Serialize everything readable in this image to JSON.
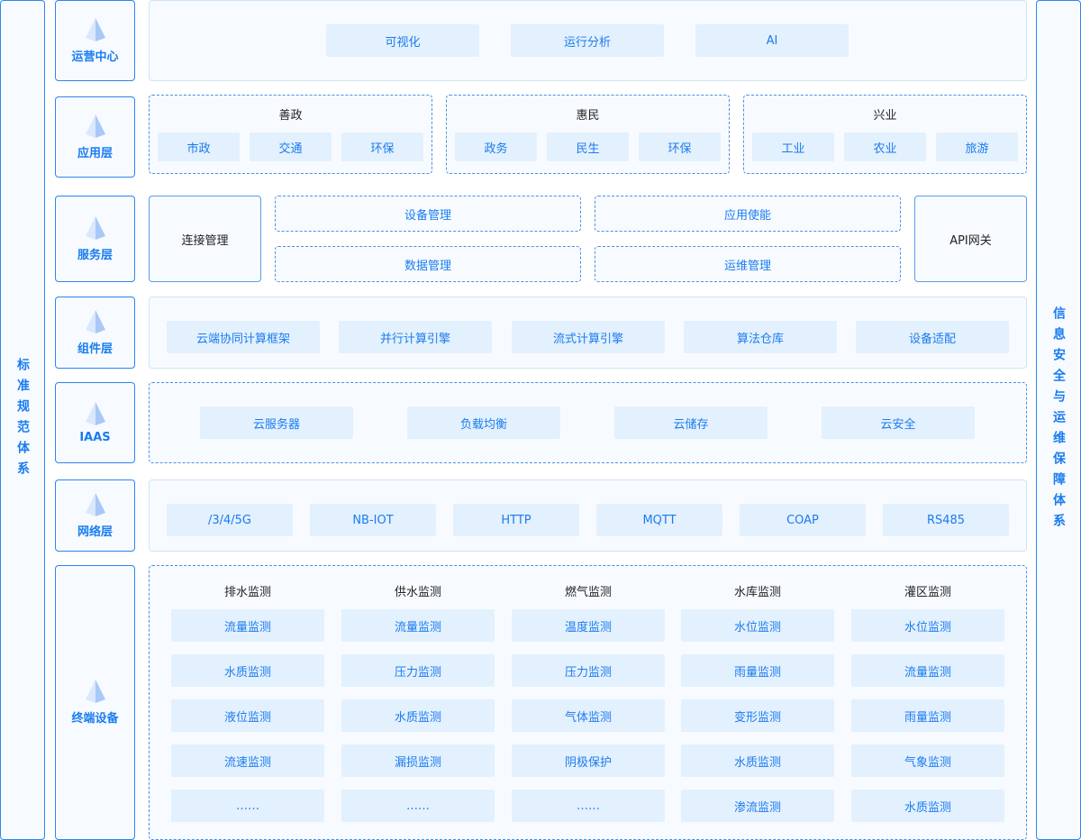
{
  "left_bar": "标准规范体系",
  "right_bar": "信息安全与运维保障体系",
  "colors": {
    "accent": "#1a7cf0",
    "item_bg": "#e3f0fd",
    "panel_bg": "#f7fbff"
  },
  "layers": [
    "运营中心",
    "应用层",
    "服务层",
    "组件层",
    "IAAS",
    "网络层",
    "终端设备"
  ],
  "layer_icon": "pyramid-icon",
  "ops": [
    "可视化",
    "运行分析",
    "AI"
  ],
  "app": [
    {
      "title": "善政",
      "items": [
        "市政",
        "交通",
        "环保"
      ]
    },
    {
      "title": "惠民",
      "items": [
        "政务",
        "民生",
        "环保"
      ]
    },
    {
      "title": "兴业",
      "items": [
        "工业",
        "农业",
        "旅游"
      ]
    }
  ],
  "service": {
    "left": "连接管理",
    "right": "API网关",
    "items": [
      "设备管理",
      "数据管理",
      "应用使能",
      "运维管理"
    ]
  },
  "components": [
    "云端协同计算框架",
    "并行计算引擎",
    "流式计算引擎",
    "算法仓库",
    "设备适配"
  ],
  "iaas": [
    "云服务器",
    "负载均衡",
    "云储存",
    "云安全"
  ],
  "network": [
    "/3/4/5G",
    "NB-IOT",
    "HTTP",
    "MQTT",
    "COAP",
    "RS485"
  ],
  "terminal": [
    {
      "title": "排水监测",
      "items": [
        "流量监测",
        "水质监测",
        "液位监测",
        "流速监测",
        "……"
      ]
    },
    {
      "title": "供水监测",
      "items": [
        "流量监测",
        "压力监测",
        "水质监测",
        "漏损监测",
        "……"
      ]
    },
    {
      "title": "燃气监测",
      "items": [
        "温度监测",
        "压力监测",
        "气体监测",
        "阴极保护",
        "……"
      ]
    },
    {
      "title": "水库监测",
      "items": [
        "水位监测",
        "雨量监测",
        "变形监测",
        "水质监测",
        "渗流监测"
      ]
    },
    {
      "title": "灌区监测",
      "items": [
        "水位监测",
        "流量监测",
        "雨量监测",
        "气象监测",
        "水质监测"
      ]
    }
  ]
}
